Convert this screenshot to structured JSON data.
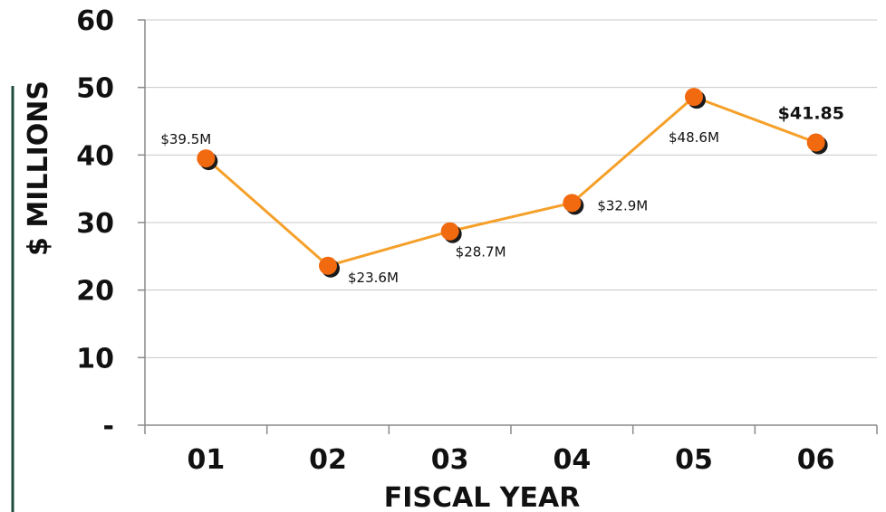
{
  "chart_data": {
    "type": "line",
    "title": "",
    "xlabel": "FISCAL YEAR",
    "ylabel": "$ MILLIONS",
    "categories": [
      "01",
      "02",
      "03",
      "04",
      "05",
      "06"
    ],
    "series": [
      {
        "values": [
          39.5,
          23.6,
          28.7,
          32.9,
          48.6,
          41.85
        ]
      }
    ],
    "data_labels": [
      "$39.5M",
      "$23.6M",
      "$28.7M",
      "$32.9M",
      "$48.6M",
      "$41.85"
    ],
    "ylim": [
      0,
      60
    ],
    "yticks": [
      0,
      10,
      20,
      30,
      40,
      50,
      60
    ],
    "ytick_labels": [
      "-",
      "10",
      "20",
      "30",
      "40",
      "50",
      "60"
    ],
    "grid": true,
    "legend": "none",
    "colors": {
      "line": "#f5a02a",
      "marker": "#f26a10",
      "marker_shadow": "#1a1a1a",
      "grid": "#c8c8c8",
      "axis": "#8a8a8a",
      "accent_bar": "#1f4d3d"
    }
  }
}
